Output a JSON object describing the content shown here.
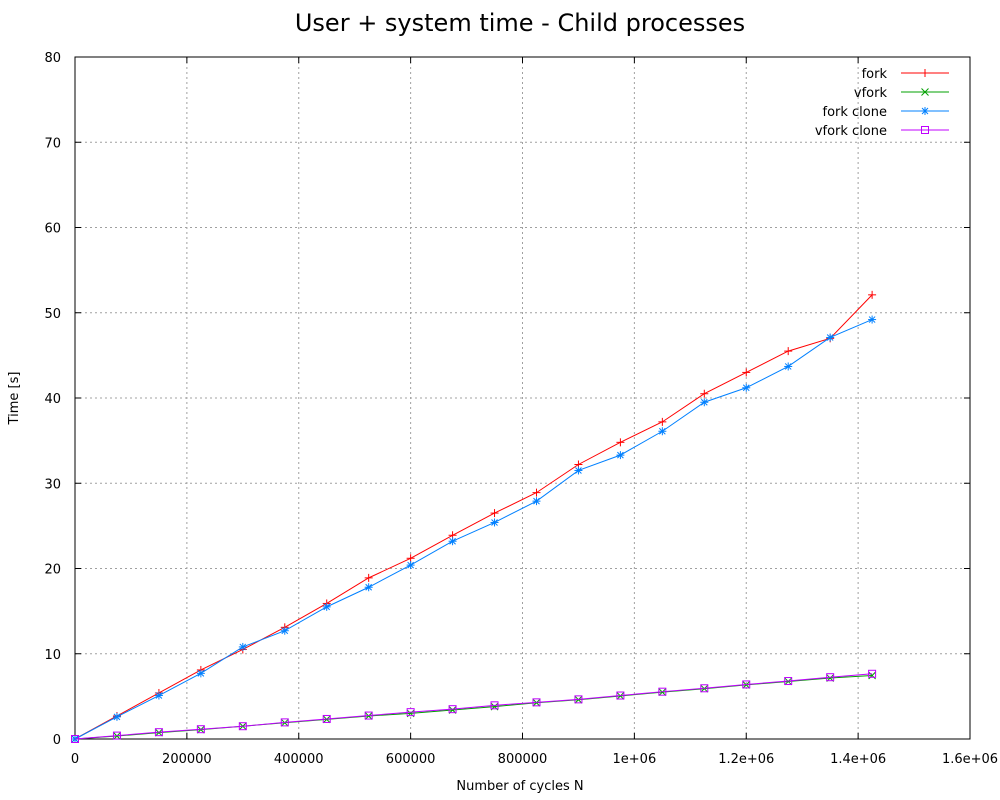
{
  "chart_data": {
    "type": "line",
    "title": "User + system time - Child processes",
    "xlabel": "Number of cycles N",
    "ylabel": "Time [s]",
    "xlim": [
      0,
      1600000
    ],
    "ylim": [
      0,
      80
    ],
    "xticks": [
      0,
      200000,
      400000,
      600000,
      800000,
      1000000,
      1200000,
      1400000,
      1600000
    ],
    "xtick_labels": [
      "0",
      "200000",
      "400000",
      "600000",
      "800000",
      "1e+06",
      "1.2e+06",
      "1.4e+06",
      "1.6e+06"
    ],
    "yticks": [
      0,
      10,
      20,
      30,
      40,
      50,
      60,
      70,
      80
    ],
    "ytick_labels": [
      "0",
      "10",
      "20",
      "30",
      "40",
      "50",
      "60",
      "70",
      "80"
    ],
    "grid": true,
    "legend_position": "top-right",
    "x": [
      0,
      75000,
      150000,
      225000,
      300000,
      375000,
      450000,
      525000,
      600000,
      675000,
      750000,
      825000,
      900000,
      975000,
      1050000,
      1125000,
      1200000,
      1275000,
      1350000,
      1425000
    ],
    "series": [
      {
        "name": "fork",
        "color": "#ff0000",
        "marker": "plus",
        "values": [
          0,
          2.7,
          5.4,
          8.1,
          10.5,
          13.1,
          15.9,
          18.9,
          21.2,
          23.9,
          26.5,
          28.9,
          32.2,
          34.8,
          37.2,
          40.5,
          43.0,
          45.5,
          47.0,
          52.1
        ]
      },
      {
        "name": "vfork",
        "color": "#00a000",
        "marker": "cross",
        "values": [
          0,
          0.35,
          0.75,
          1.1,
          1.5,
          1.9,
          2.3,
          2.7,
          3.0,
          3.4,
          3.8,
          4.25,
          4.6,
          5.05,
          5.5,
          5.9,
          6.35,
          6.75,
          7.15,
          7.45
        ]
      },
      {
        "name": "fork clone",
        "color": "#0080ff",
        "marker": "star",
        "values": [
          0,
          2.6,
          5.1,
          7.7,
          10.8,
          12.7,
          15.5,
          17.8,
          20.4,
          23.2,
          25.4,
          27.9,
          31.5,
          33.3,
          36.1,
          39.5,
          41.2,
          43.7,
          47.1,
          49.2
        ]
      },
      {
        "name": "vfork clone",
        "color": "#c000ff",
        "marker": "square",
        "values": [
          0,
          0.4,
          0.8,
          1.15,
          1.5,
          1.95,
          2.35,
          2.75,
          3.15,
          3.5,
          3.95,
          4.3,
          4.65,
          5.1,
          5.55,
          5.95,
          6.4,
          6.8,
          7.25,
          7.65
        ]
      }
    ]
  }
}
